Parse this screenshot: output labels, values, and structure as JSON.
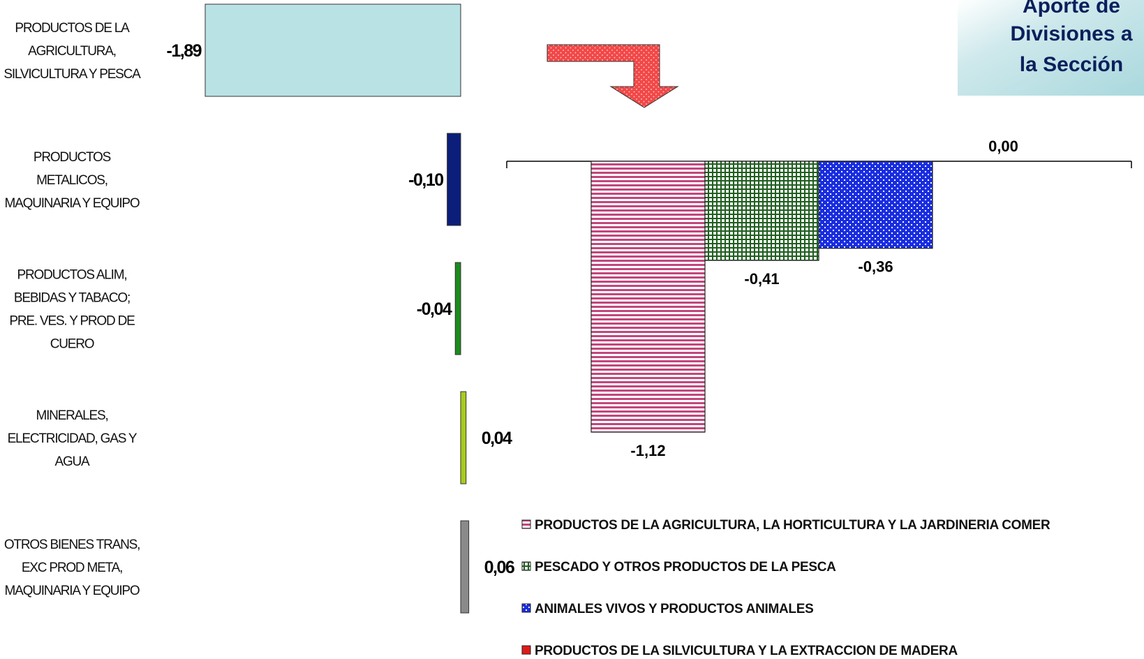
{
  "title_box": {
    "lines": [
      "Aporte de",
      "Divisiones a",
      "la Sección"
    ]
  },
  "chart_data": [
    {
      "type": "bar",
      "orientation": "horizontal",
      "categories": [
        [
          "PRODUCTOS DE LA",
          "AGRICULTURA,",
          "SILVICULTURA Y PESCA"
        ],
        [
          "PRODUCTOS",
          "METALICOS,",
          "MAQUINARIA Y EQUIPO"
        ],
        [
          "PRODUCTOS  ALIM,",
          "BEBIDAS Y TABACO;",
          "PRE. VES. Y PROD DE",
          "CUERO"
        ],
        [
          "MINERALES,",
          "ELECTRICIDAD, GAS Y",
          "AGUA"
        ],
        [
          "OTROS BIENES TRANS,",
          "EXC PROD META,",
          "MAQUINARIA Y EQUIPO"
        ]
      ],
      "values": [
        -1.89,
        -0.1,
        -0.04,
        0.04,
        0.06
      ],
      "value_labels": [
        "-1,89",
        "-0,10",
        "-0,04",
        "0,04",
        "0,06"
      ],
      "colors": [
        "#b9e2e5",
        "#0a1e7a",
        "#1d8a1d",
        "#a8cc1e",
        "#8a8a8a"
      ]
    },
    {
      "type": "bar",
      "orientation": "vertical",
      "series": [
        {
          "name": "PRODUCTOS DE LA AGRICULTURA,  LA HORTICULTURA  Y LA JARDINERIA COMER",
          "value": -1.12,
          "value_label": "-1,12",
          "color": "#c2467c",
          "pattern": "h-stripes"
        },
        {
          "name": "PESCADO Y OTROS PRODUCTOS DE LA PESCA",
          "value": -0.41,
          "value_label": "-0,41",
          "color": "#1f5e1f",
          "pattern": "grid"
        },
        {
          "name": "ANIMALES VIVOS Y PRODUCTOS ANIMALES",
          "value": -0.36,
          "value_label": "-0,36",
          "color": "#1a2ee0",
          "pattern": "dots"
        },
        {
          "name": "PRODUCTOS DE LA SILVICULTURA Y LA EXTRACCION DE MADERA",
          "value": 0.0,
          "value_label": "0,00",
          "color": "#e01a1a",
          "pattern": "solid"
        }
      ],
      "legend_position": "bottom"
    }
  ]
}
